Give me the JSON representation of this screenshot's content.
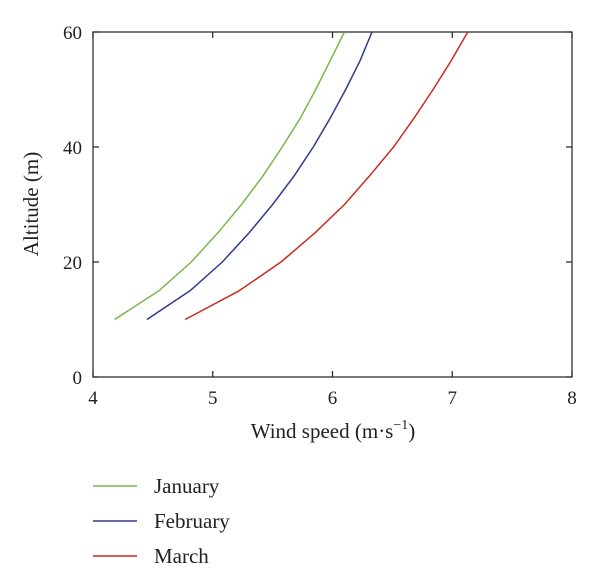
{
  "chart_data": {
    "type": "line",
    "xlabel_main": "Wind speed (m·s",
    "xlabel_sup": "−1",
    "xlabel_close": ")",
    "ylabel": "Altitude (m)",
    "xlim": [
      4,
      8
    ],
    "ylim": [
      0,
      60
    ],
    "x_ticks": [
      "4",
      "5",
      "6",
      "7",
      "8"
    ],
    "y_ticks": [
      "0",
      "20",
      "40",
      "60"
    ],
    "grid": false,
    "legend_position": "bottom",
    "series": [
      {
        "name": "January",
        "color": "#7ab648",
        "x": [
          4.18,
          4.55,
          4.82,
          5.04,
          5.24,
          5.42,
          5.58,
          5.73,
          5.86,
          5.98,
          6.1
        ],
        "y": [
          10,
          15,
          20,
          25,
          30,
          35,
          40,
          45,
          50,
          55,
          60
        ]
      },
      {
        "name": "February",
        "color": "#2e3a8c",
        "x": [
          4.45,
          4.81,
          5.08,
          5.3,
          5.5,
          5.68,
          5.84,
          5.98,
          6.11,
          6.23,
          6.33
        ],
        "y": [
          10,
          15,
          20,
          25,
          30,
          35,
          40,
          45,
          50,
          55,
          60
        ]
      },
      {
        "name": "March",
        "color": "#cc2a1e",
        "x": [
          4.77,
          5.22,
          5.57,
          5.85,
          6.1,
          6.31,
          6.51,
          6.68,
          6.84,
          6.99,
          7.13
        ],
        "y": [
          10,
          15,
          20,
          25,
          30,
          35,
          40,
          45,
          50,
          55,
          60
        ]
      }
    ]
  }
}
